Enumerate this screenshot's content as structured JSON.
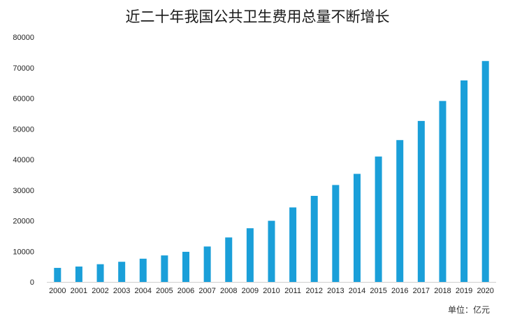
{
  "chart_data": {
    "type": "bar",
    "title": "近二十年我国公共卫生费用总量不断增长",
    "unit_label": "单位：亿元",
    "categories": [
      "2000",
      "2001",
      "2002",
      "2003",
      "2004",
      "2005",
      "2006",
      "2007",
      "2008",
      "2009",
      "2010",
      "2011",
      "2012",
      "2013",
      "2014",
      "2015",
      "2016",
      "2017",
      "2018",
      "2019",
      "2020"
    ],
    "values": [
      4587,
      5026,
      5790,
      6584,
      7590,
      8660,
      9843,
      11574,
      14535,
      17542,
      19980,
      24346,
      28119,
      31669,
      35312,
      40975,
      46345,
      52598,
      59122,
      65841,
      72175
    ],
    "ylim": [
      0,
      80000
    ],
    "yticks": [
      0,
      10000,
      20000,
      30000,
      40000,
      50000,
      60000,
      70000,
      80000
    ],
    "bar_color": "#1a9fd9",
    "grid": false
  }
}
